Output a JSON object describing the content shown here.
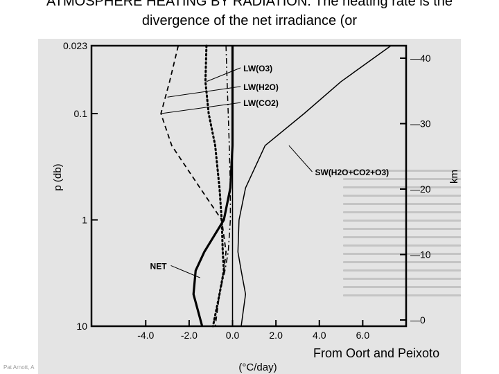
{
  "slide": {
    "title": "ATMOSPHERE HEATING BY RADIATION: The heating rate is the divergence of the net irradiance (or",
    "source": "From Oort and Peixoto",
    "footer": "Pat Arnott, A"
  },
  "chart_data": {
    "type": "line",
    "xlabel": "(°C/day)",
    "ylabel": "p (db)",
    "y2label": "km",
    "xlim": [
      -6.5,
      8.0
    ],
    "y_scale": "log",
    "ylim": [
      10,
      0.023
    ],
    "x_ticks": [
      "-4.0",
      "-2.0",
      "0.0",
      "2.0",
      "4.0",
      "6.0"
    ],
    "x_tick_values": [
      -4,
      -2,
      0,
      2,
      4,
      6
    ],
    "y_ticks": [
      "0.023",
      "0.1",
      "1",
      "10"
    ],
    "y_tick_values": [
      0.023,
      0.1,
      1,
      10
    ],
    "y2_ticks": [
      "0",
      "10",
      "20",
      "30",
      "40"
    ],
    "y2_tick_values": [
      0,
      10,
      20,
      30,
      40
    ],
    "grid": false,
    "series": [
      {
        "name": "LW(O3)",
        "style": "dotted",
        "x": [
          -1.2,
          -1.25,
          -1.1,
          -0.8,
          -0.6,
          -0.5,
          -0.45,
          -0.4,
          -0.6,
          -0.9
        ],
        "y": [
          0.023,
          0.05,
          0.1,
          0.2,
          0.5,
          1,
          2,
          3,
          5,
          10
        ]
      },
      {
        "name": "LW(H2O)",
        "style": "dashdot",
        "x": [
          -0.3,
          -0.25,
          -0.2,
          -0.15,
          -0.1,
          -0.1,
          -0.2,
          -0.35,
          -0.6,
          -0.9
        ],
        "y": [
          0.023,
          0.05,
          0.1,
          0.2,
          0.5,
          1,
          2,
          3,
          5,
          10
        ]
      },
      {
        "name": "LW(CO2)",
        "style": "dashed",
        "x": [
          -2.5,
          -2.9,
          -3.3,
          -2.8,
          -1.5,
          -0.5,
          -0.3,
          -0.4,
          -0.6,
          -0.8
        ],
        "y": [
          0.023,
          0.05,
          0.1,
          0.2,
          0.5,
          1,
          2,
          3,
          5,
          10
        ]
      },
      {
        "name": "SW(H2O+CO2+O3)",
        "style": "solid-thin",
        "x": [
          7.3,
          5.0,
          3.3,
          1.5,
          0.6,
          0.3,
          0.25,
          0.4,
          0.6,
          0.4
        ],
        "y": [
          0.023,
          0.05,
          0.1,
          0.2,
          0.5,
          1,
          2,
          3,
          5,
          10
        ]
      },
      {
        "name": "NET",
        "style": "solid-bold",
        "x": [
          0,
          0,
          0,
          0,
          -0.1,
          -0.4,
          -1.3,
          -1.7,
          -1.8,
          -1.4
        ],
        "y": [
          0.023,
          0.05,
          0.1,
          0.2,
          0.5,
          1,
          2,
          3,
          5,
          10
        ]
      }
    ],
    "annotations": [
      {
        "text": "LW(O3)",
        "x": 0.5,
        "y": 0.04
      },
      {
        "text": "LW(H2O)",
        "x": 0.5,
        "y": 0.06
      },
      {
        "text": "LW(CO2)",
        "x": 0.5,
        "y": 0.085
      },
      {
        "text": "SW(H2O+CO2+O3)",
        "x": 3.8,
        "y": 0.38
      },
      {
        "text": "NET",
        "x": -3.8,
        "y": 2.9
      }
    ],
    "colors": {
      "lines": "#000000",
      "background": "#e4e4e4"
    }
  }
}
